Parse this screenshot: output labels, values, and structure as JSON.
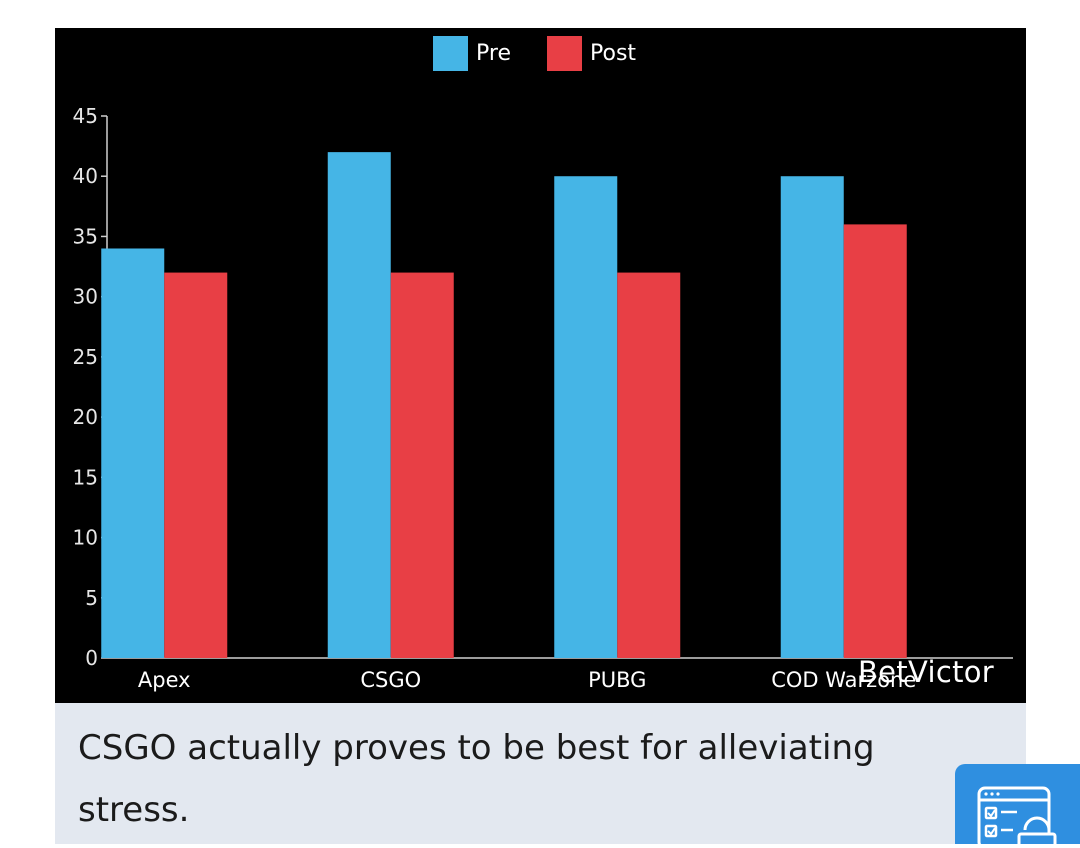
{
  "chart_data": {
    "type": "bar",
    "categories": [
      "Apex",
      "CSGO",
      "PUBG",
      "COD Warzone"
    ],
    "series": [
      {
        "name": "Pre",
        "color": "#45b5e6",
        "values": [
          34,
          42,
          40,
          40
        ]
      },
      {
        "name": "Post",
        "color": "#e83f45",
        "values": [
          32,
          32,
          32,
          36
        ]
      }
    ],
    "ylim": [
      0,
      45
    ],
    "yticks": [
      0,
      5,
      10,
      15,
      20,
      25,
      30,
      35,
      40,
      45
    ],
    "xlabel": "",
    "ylabel": "",
    "legend": "top-center"
  },
  "watermark": "BetVictor",
  "caption": "CSGO actually proves to be best for alleviating stress.",
  "corner_widget": {
    "icon": "checklist-lock-icon"
  }
}
